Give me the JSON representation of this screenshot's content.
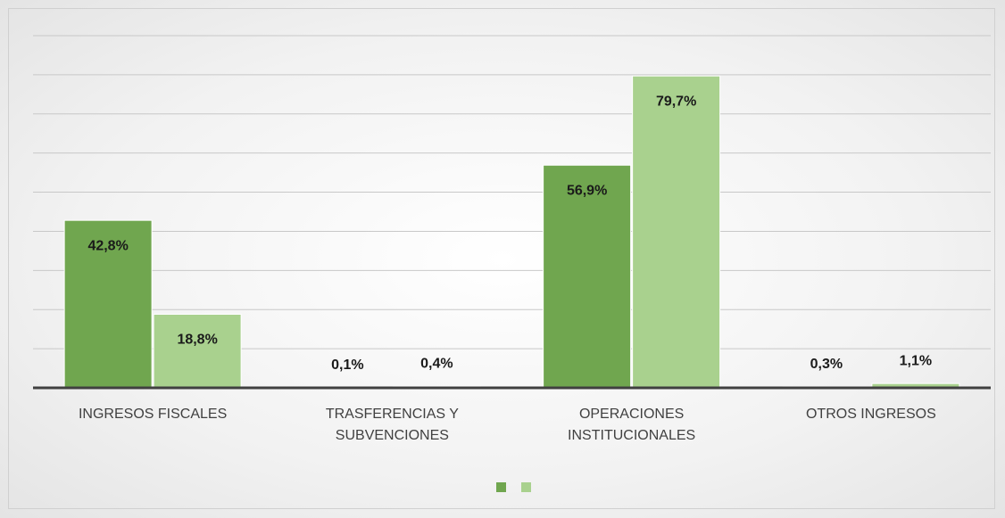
{
  "chart_data": {
    "type": "bar",
    "categories": [
      "INGRESOS FISCALES",
      "TRASFERENCIAS Y\nSUBVENCIONES",
      "OPERACIONES\nINSTITUCIONALES",
      "OTROS INGRESOS"
    ],
    "series": [
      {
        "color": "#70a64f",
        "values": [
          42.8,
          0.1,
          56.9,
          0.3
        ],
        "value_labels": [
          "42,8%",
          "0,1%",
          "56,9%",
          "0,3%"
        ]
      },
      {
        "color": "#a9d18e",
        "values": [
          18.8,
          0.4,
          79.7,
          1.1
        ],
        "value_labels": [
          "18,8%",
          "0,4%",
          "79,7%",
          "1,1%"
        ]
      }
    ],
    "ylim": [
      0,
      90
    ],
    "yticks": [
      0,
      10,
      20,
      30,
      40,
      50,
      60,
      70,
      80,
      90
    ],
    "grid": true
  }
}
